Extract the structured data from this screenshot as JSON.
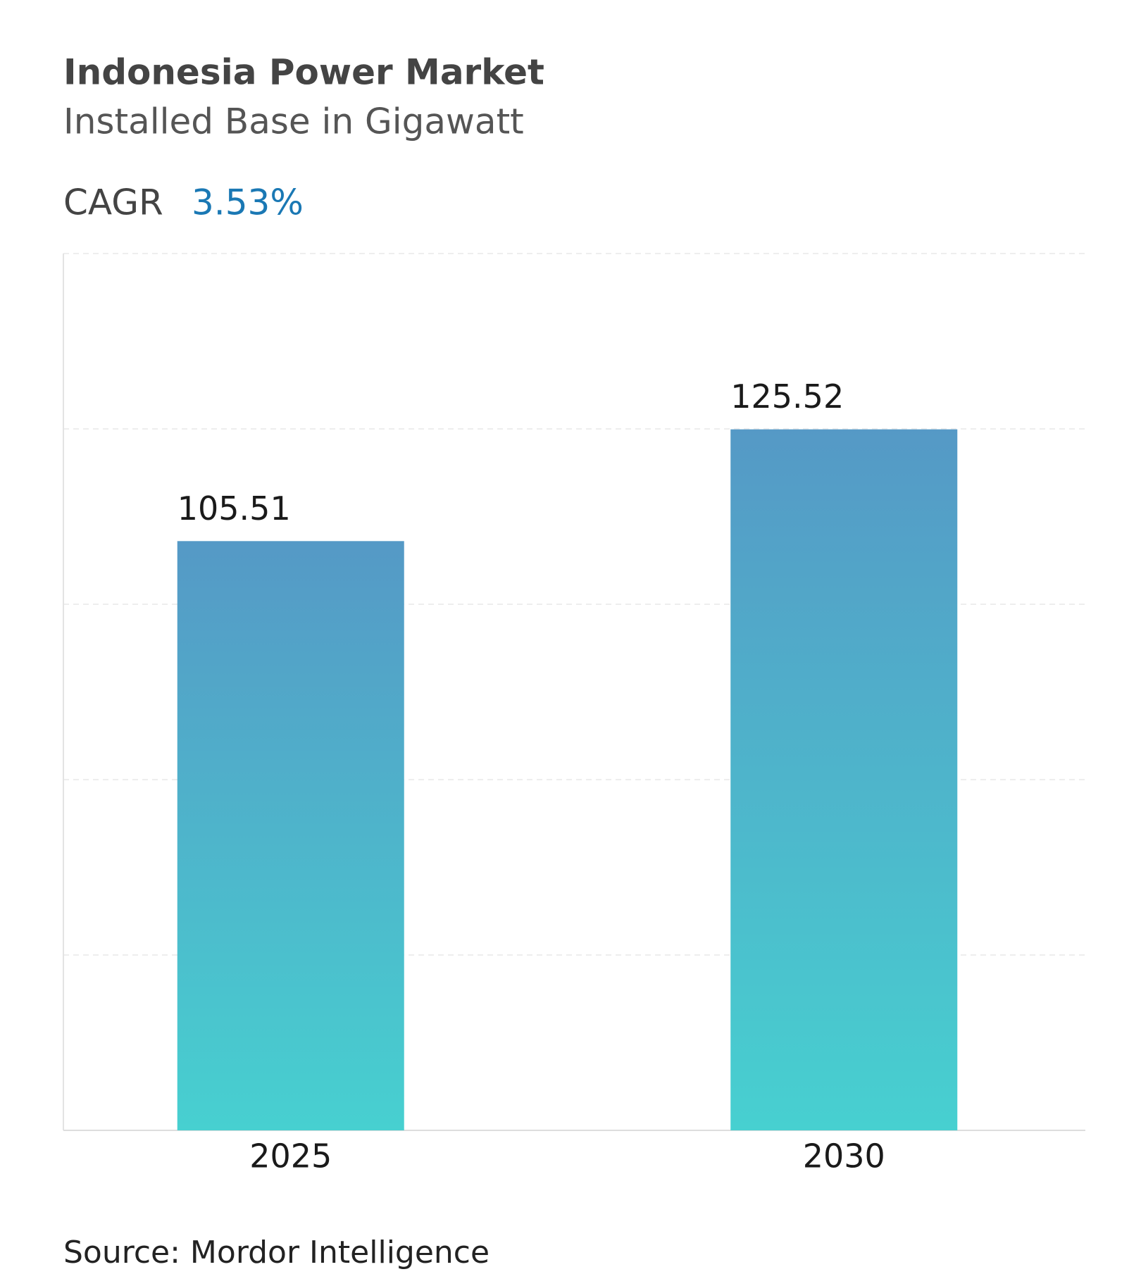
{
  "chart_data": {
    "type": "bar",
    "title": "Indonesia Power Market",
    "subtitle": "Installed Base in Gigawatt",
    "cagr_label": "CAGR",
    "cagr_value": "3.53%",
    "categories": [
      "2025",
      "2030"
    ],
    "values": [
      105.51,
      125.52
    ],
    "colors": [
      "#5599c6",
      "#47d0d0"
    ],
    "ylim": [
      0,
      157
    ],
    "yticks": [
      31.4,
      62.8,
      94.2,
      125.6,
      157
    ],
    "grid": true,
    "source": "Source: Mordor Intelligence"
  }
}
